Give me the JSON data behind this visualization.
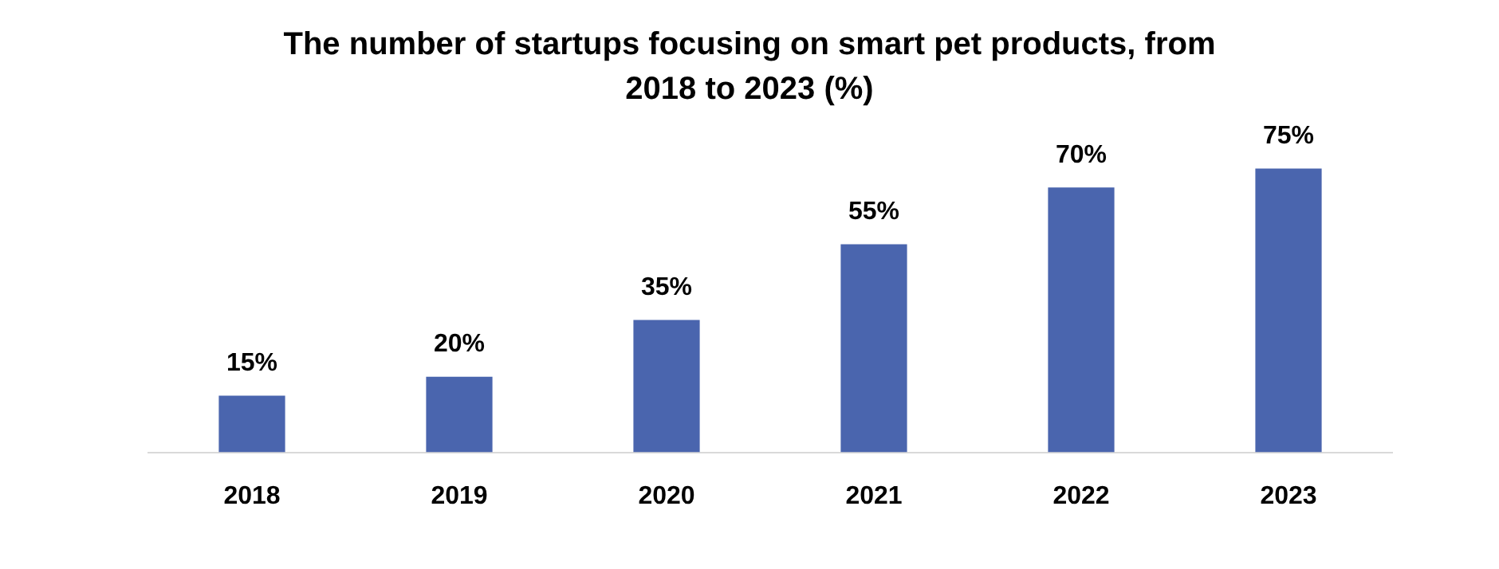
{
  "chart_data": {
    "type": "bar",
    "title": "The number of startups focusing on smart pet products, from 2018 to 2023 (%)",
    "categories": [
      "2018",
      "2019",
      "2020",
      "2021",
      "2022",
      "2023"
    ],
    "values": [
      15,
      20,
      35,
      55,
      70,
      75
    ],
    "color": "#4a65ae",
    "value_labels": [
      "15%",
      "20%",
      "35%",
      "55%",
      "70%",
      "75%"
    ],
    "grid": false,
    "legend": false,
    "tick_labels": "x"
  }
}
